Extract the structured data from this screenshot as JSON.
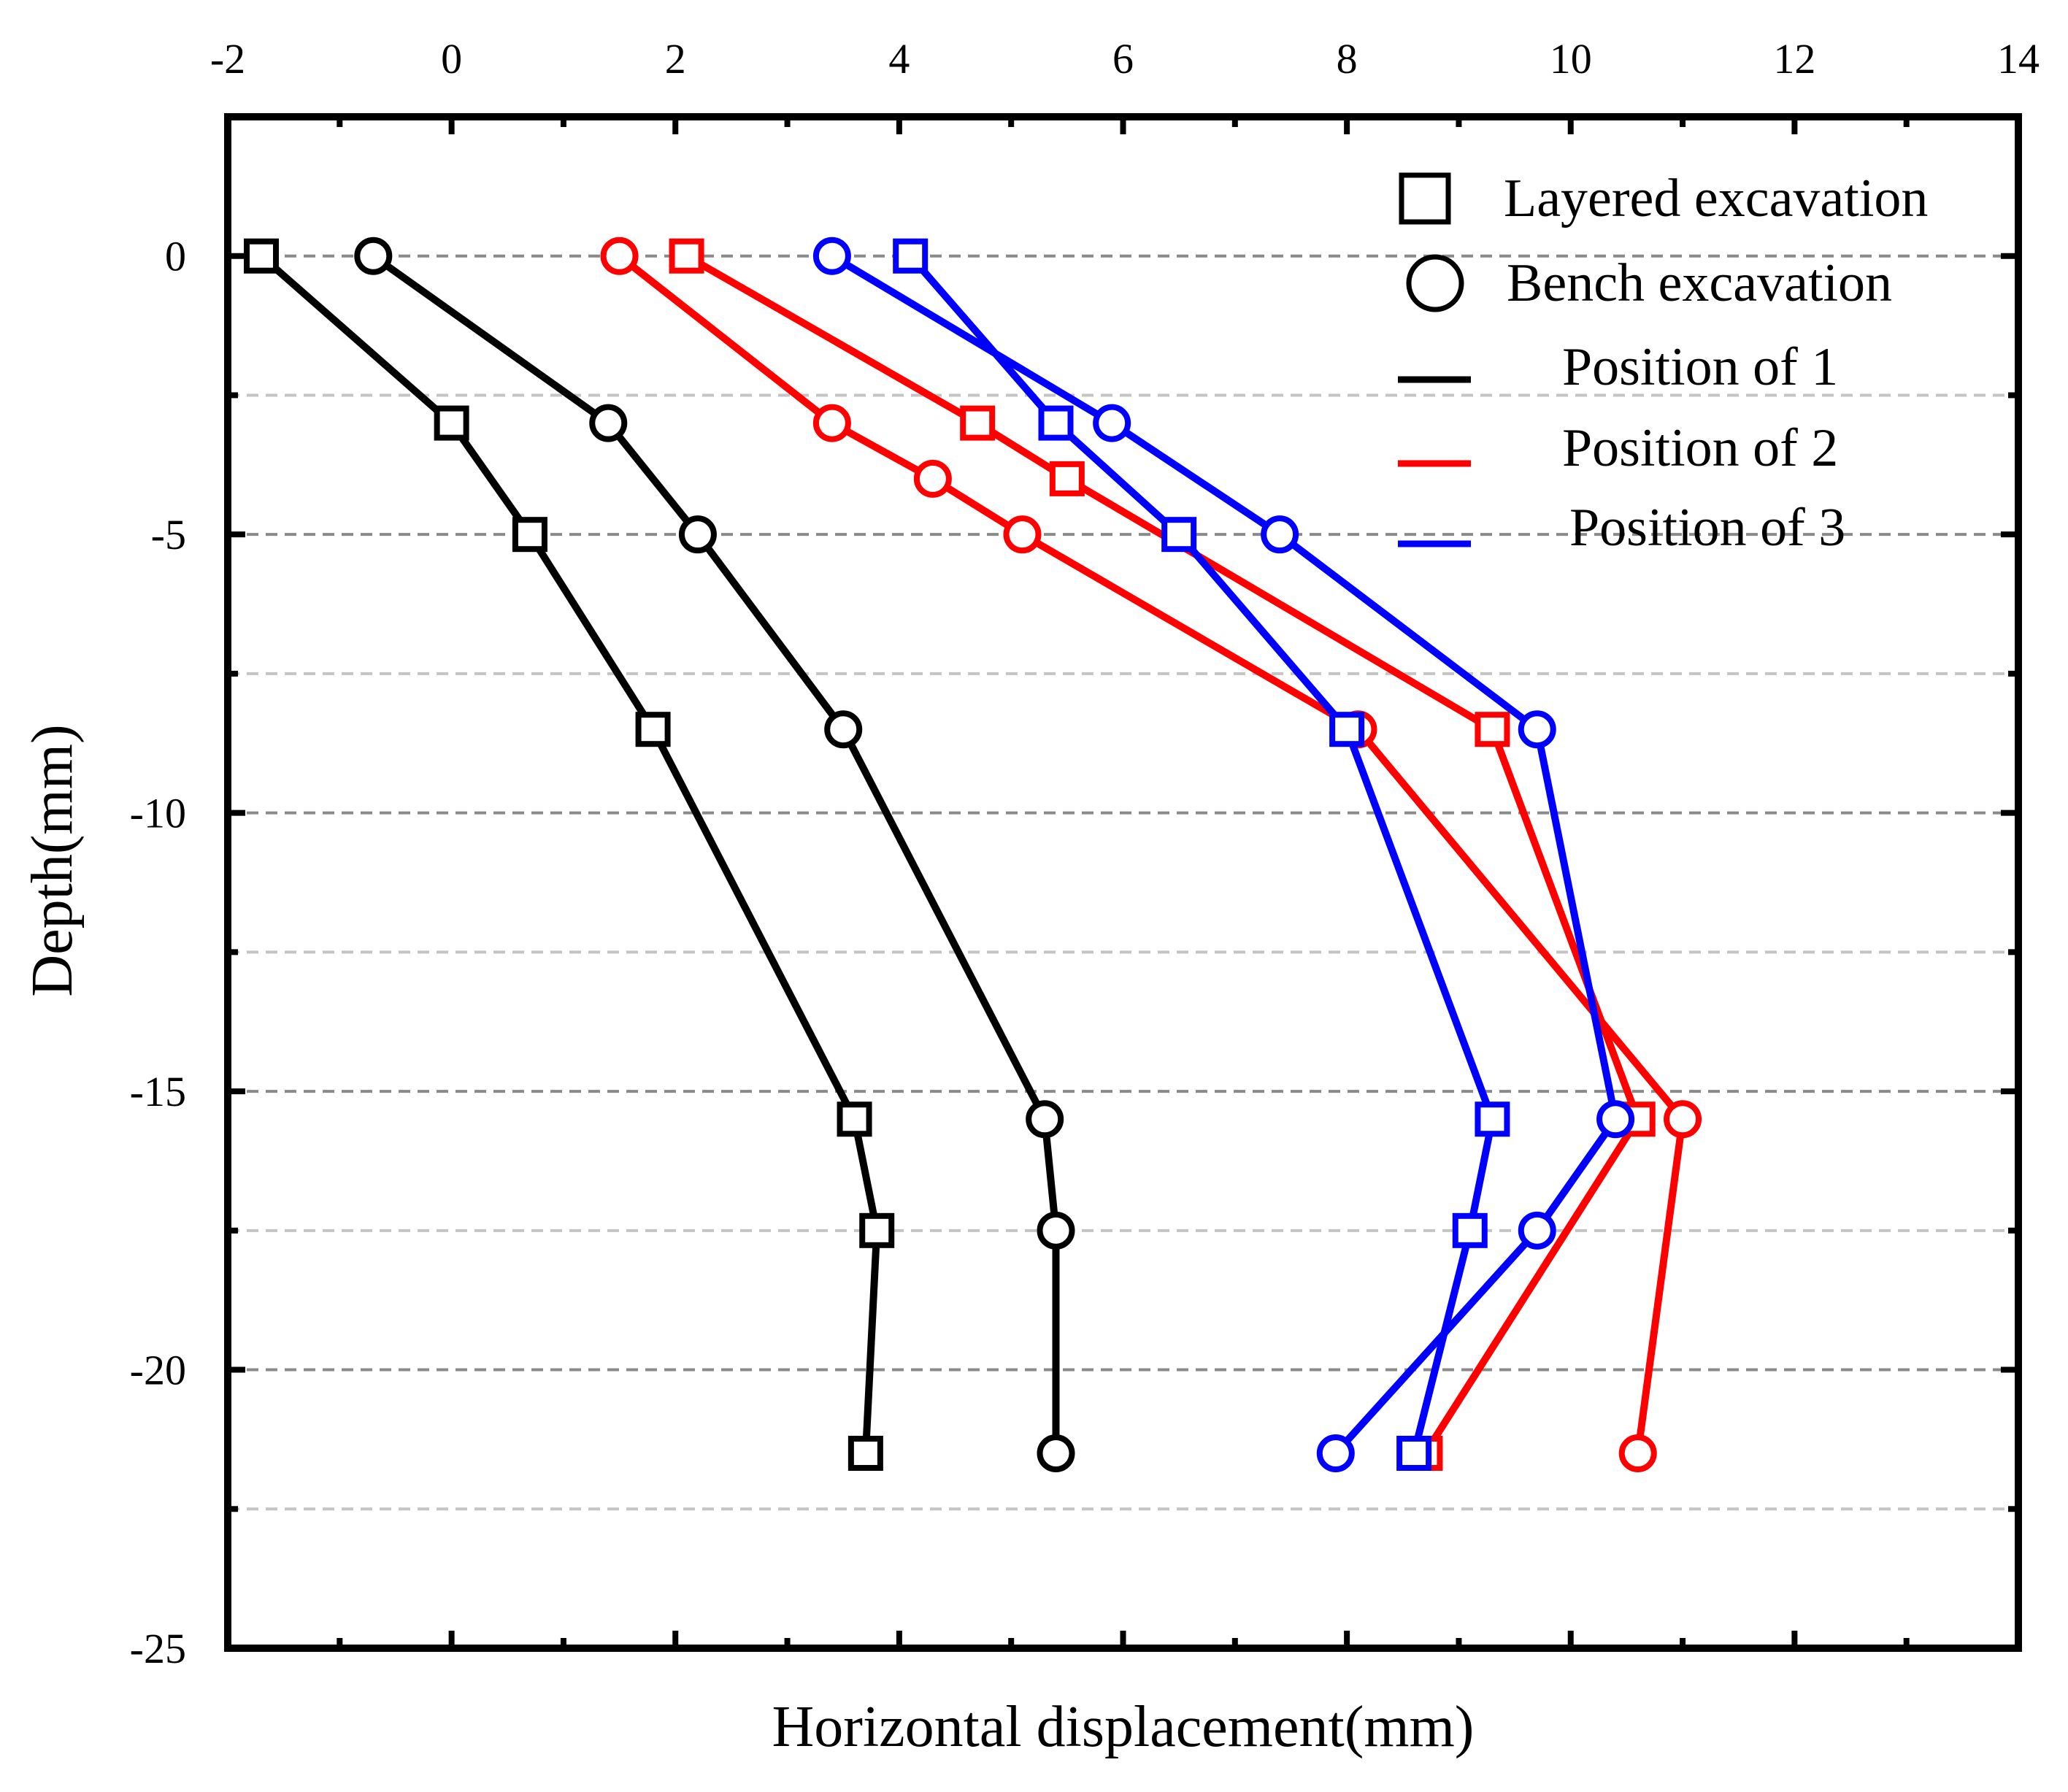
{
  "chart_data": {
    "type": "line",
    "title": "",
    "xlabel": "Horizontal displacement(mm)",
    "ylabel": "Depth(mm)",
    "xlim": [
      -2,
      14
    ],
    "ylim": [
      -25,
      2.5
    ],
    "xticks": [
      -2,
      0,
      2,
      4,
      6,
      8,
      10,
      12,
      14
    ],
    "yticks": [
      0,
      -5,
      -10,
      -15,
      -20,
      -25
    ],
    "xtick_labels": [
      "-2",
      "0",
      "2",
      "4",
      "6",
      "8",
      "10",
      "12",
      "14"
    ],
    "ytick_labels": [
      "0",
      "-5",
      "-10",
      "-15",
      "-20",
      "-25"
    ],
    "x_axis_position": "top",
    "grid_major": [
      0,
      -5,
      -10,
      -15,
      -20
    ],
    "grid_minor": [
      -2.5,
      -7.5,
      -12.5,
      -17.5,
      -22.5
    ],
    "legend_position": "top-right",
    "legend": {
      "markers": [
        {
          "label": "Layered excavation",
          "marker": "square"
        },
        {
          "label": "Bench  excavation",
          "marker": "circle"
        }
      ],
      "lines": [
        {
          "label": "Position of 1",
          "color": "#000000"
        },
        {
          "label": "Position of  2",
          "color": "#ff0000"
        },
        {
          "label": " Position of  3",
          "color": "#0000ff"
        }
      ]
    },
    "series": [
      {
        "name": "Position 1 - Layered excavation",
        "color": "#000000",
        "marker": "square",
        "x": [
          -1.7,
          0.0,
          0.7,
          1.8,
          3.6,
          3.8,
          3.7
        ],
        "y": [
          0,
          -3,
          -5,
          -8.5,
          -15.5,
          -17.5,
          -21.5
        ]
      },
      {
        "name": "Position 1 - Bench excavation",
        "color": "#000000",
        "marker": "circle",
        "x": [
          -0.7,
          1.4,
          2.2,
          3.5,
          5.3,
          5.4,
          5.4
        ],
        "y": [
          0,
          -3,
          -5,
          -8.5,
          -15.5,
          -17.5,
          -21.5
        ]
      },
      {
        "name": "Position 2 - Layered excavation",
        "color": "#ff0000",
        "marker": "square",
        "x": [
          2.1,
          4.7,
          5.5,
          9.3,
          10.6,
          8.7
        ],
        "y": [
          0,
          -3,
          -4,
          -8.5,
          -15.5,
          -21.5
        ]
      },
      {
        "name": "Position 2 - Bench excavation",
        "color": "#ff0000",
        "marker": "circle",
        "x": [
          1.5,
          3.4,
          4.3,
          5.1,
          8.1,
          11.0,
          10.6
        ],
        "y": [
          0,
          -3,
          -4,
          -5,
          -8.5,
          -15.5,
          -21.5
        ]
      },
      {
        "name": "Position 3 - Layered excavation",
        "color": "#0000ff",
        "marker": "square",
        "x": [
          4.1,
          5.4,
          6.5,
          8.0,
          9.3,
          9.1,
          8.6
        ],
        "y": [
          0,
          -3,
          -5,
          -8.5,
          -15.5,
          -17.5,
          -21.5
        ]
      },
      {
        "name": "Position 3 - Bench excavation",
        "color": "#0000ff",
        "marker": "circle",
        "x": [
          3.4,
          5.9,
          7.4,
          9.7,
          10.4,
          9.7,
          7.9
        ],
        "y": [
          0,
          -3,
          -5,
          -8.5,
          -15.5,
          -17.5,
          -21.5
        ]
      }
    ]
  }
}
